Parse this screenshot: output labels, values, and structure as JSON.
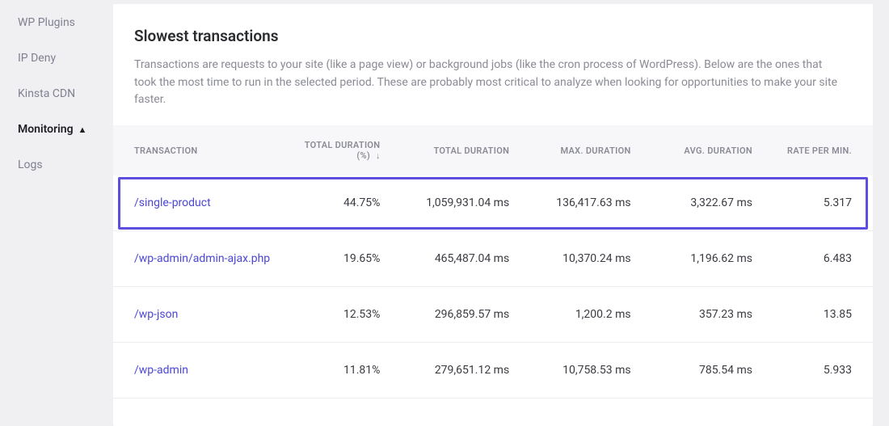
{
  "sidebar": {
    "items": [
      {
        "label": "WP Plugins",
        "active": false
      },
      {
        "label": "IP Deny",
        "active": false
      },
      {
        "label": "Kinsta CDN",
        "active": false
      },
      {
        "label": "Monitoring",
        "active": true,
        "icon": "▲"
      },
      {
        "label": "Logs",
        "active": false
      }
    ]
  },
  "panel": {
    "title": "Slowest transactions",
    "description": "Transactions are requests to your site (like a page view) or background jobs (like the cron process of WordPress). Below are the ones that took the most time to run in the selected period. These are probably most critical to analyze when looking for opportunities to make your site faster."
  },
  "table": {
    "columns": {
      "transaction": "TRANSACTION",
      "total_pct": "TOTAL DURATION (%)",
      "total_dur": "TOTAL DURATION",
      "max_dur": "MAX. DURATION",
      "avg_dur": "AVG. DURATION",
      "rate": "RATE PER MIN."
    },
    "col_widths": {
      "transaction": "24%",
      "total_pct": "12%",
      "total_dur": "17%",
      "max_dur": "16%",
      "avg_dur": "16%",
      "rate": "15%"
    },
    "sort": {
      "column": "total_pct",
      "dir_icon": "↓"
    },
    "rows": [
      {
        "transaction": "/single-product",
        "total_pct": "44.75%",
        "total_dur": "1,059,931.04 ms",
        "max_dur": "136,417.63 ms",
        "avg_dur": "3,322.67 ms",
        "rate": "5.317",
        "highlighted": true
      },
      {
        "transaction": "/wp-admin/admin-ajax.php",
        "total_pct": "19.65%",
        "total_dur": "465,487.04 ms",
        "max_dur": "10,370.24 ms",
        "avg_dur": "1,196.62 ms",
        "rate": "6.483"
      },
      {
        "transaction": "/wp-json",
        "total_pct": "12.53%",
        "total_dur": "296,859.57 ms",
        "max_dur": "1,200.2 ms",
        "avg_dur": "357.23 ms",
        "rate": "13.85"
      },
      {
        "transaction": "/wp-admin",
        "total_pct": "11.81%",
        "total_dur": "279,651.12 ms",
        "max_dur": "10,758.53 ms",
        "avg_dur": "785.54 ms",
        "rate": "5.933"
      }
    ]
  },
  "colors": {
    "highlight": "#5c4fe0",
    "link": "#4b47d4",
    "muted": "#8a8b95",
    "bg": "#f0f0f3",
    "panel_bg": "#ffffff",
    "row_border": "#ededf1",
    "thead_bg": "#f7f7fa"
  }
}
